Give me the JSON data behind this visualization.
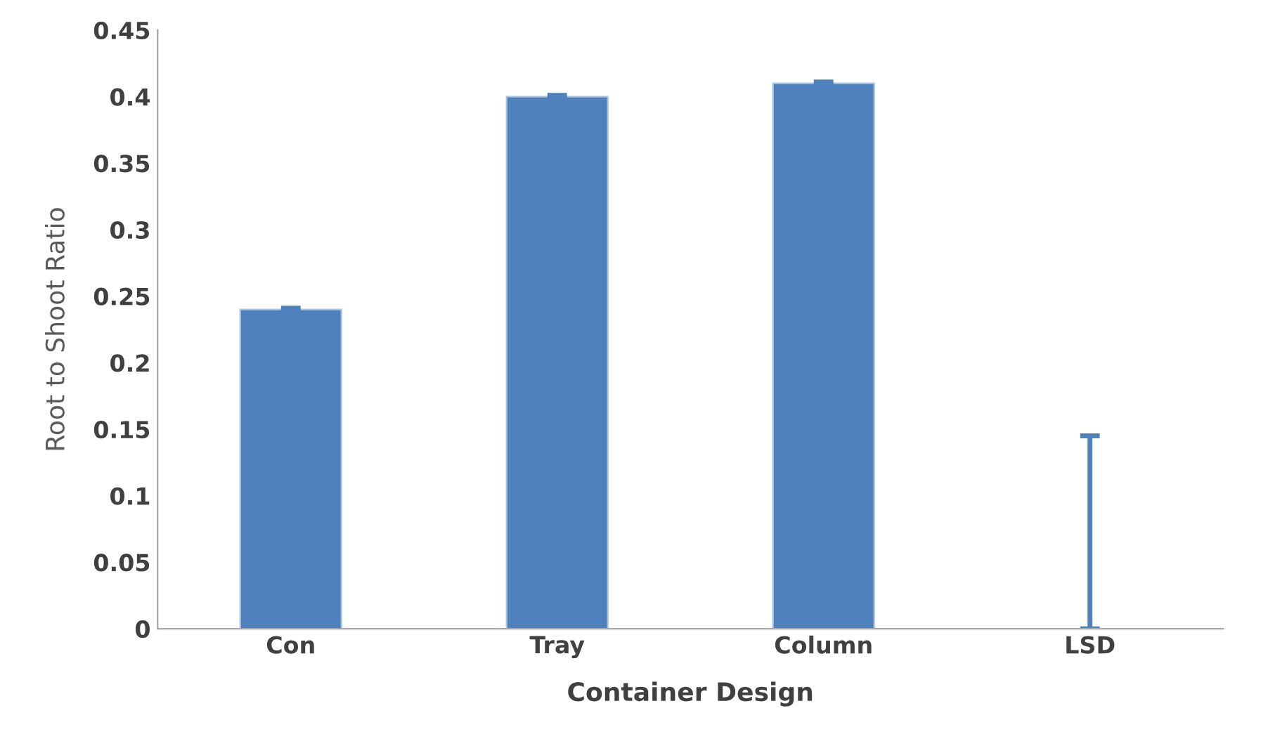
{
  "chart_data": {
    "type": "bar",
    "xlabel": "Container Design",
    "ylabel": "Root to Shoot Ratio",
    "categories": [
      "Con",
      "Tray",
      "Column",
      "LSD"
    ],
    "values": [
      0.24,
      0.4,
      0.41,
      0
    ],
    "errors": [
      0.001,
      0.001,
      0.001,
      [
        0,
        0.145
      ]
    ],
    "color": "#4f81bd",
    "ylim": [
      0,
      0.45
    ],
    "yticks": [
      0,
      0.05,
      0.1,
      0.15,
      0.2,
      0.25,
      0.3,
      0.35,
      0.4,
      0.45
    ],
    "grid": false,
    "legend": false
  }
}
